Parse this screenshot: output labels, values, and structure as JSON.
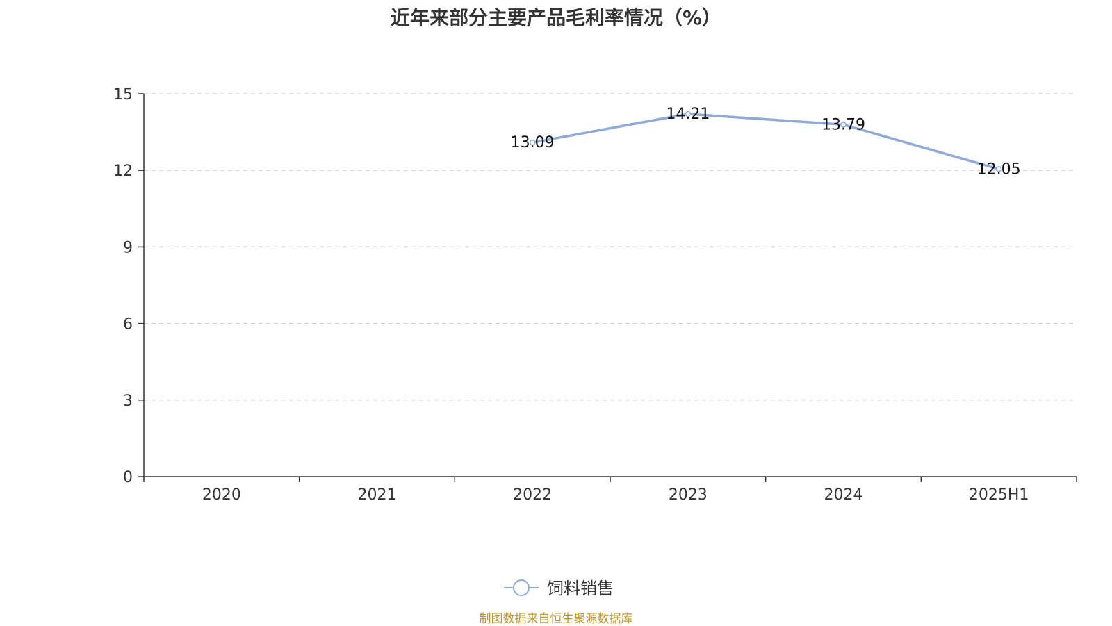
{
  "chart_data": {
    "type": "line",
    "title": "近年来部分主要产品毛利率情况（%）",
    "categories": [
      "2020",
      "2021",
      "2022",
      "2023",
      "2024",
      "2025H1"
    ],
    "series": [
      {
        "name": "饲料销售",
        "values": [
          null,
          null,
          13.09,
          14.21,
          13.79,
          12.05
        ],
        "color": "#8eaad9"
      }
    ],
    "ylim": [
      0,
      15
    ],
    "yticks": [
      0,
      3,
      6,
      9,
      12,
      15
    ],
    "grid": true,
    "legend_position": "bottom-center"
  },
  "footer": {
    "source": "制图数据来自恒生聚源数据库"
  }
}
